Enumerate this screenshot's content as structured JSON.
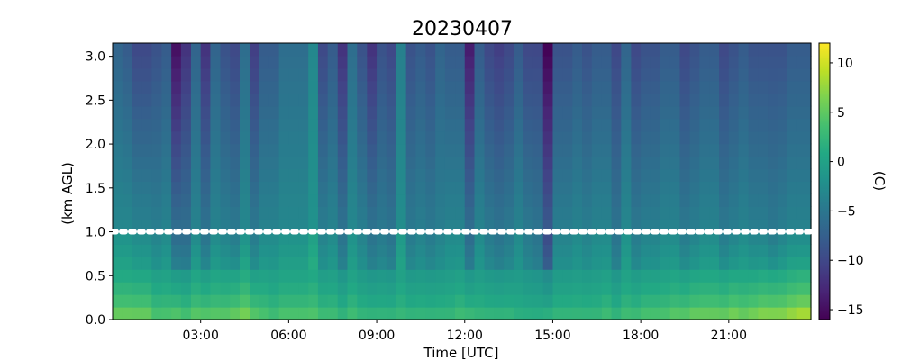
{
  "chart_data": {
    "type": "heatmap",
    "title": "20230407",
    "xlabel": "Time [UTC]",
    "ylabel": "(km AGL)",
    "colorbar_label": "(C)",
    "colormap": "viridis",
    "xlim_hours": [
      0,
      23.8
    ],
    "ylim_km": [
      0.0,
      3.15
    ],
    "clim_c": [
      -16.0,
      12.0
    ],
    "x_ticks": [
      {
        "hour": 3,
        "label": "03:00"
      },
      {
        "hour": 6,
        "label": "06:00"
      },
      {
        "hour": 9,
        "label": "09:00"
      },
      {
        "hour": 12,
        "label": "12:00"
      },
      {
        "hour": 15,
        "label": "15:00"
      },
      {
        "hour": 18,
        "label": "18:00"
      },
      {
        "hour": 21,
        "label": "21:00"
      }
    ],
    "y_ticks": [
      {
        "value": 0.0,
        "label": "0.0"
      },
      {
        "value": 0.5,
        "label": "0.5"
      },
      {
        "value": 1.0,
        "label": "1.0"
      },
      {
        "value": 1.5,
        "label": "1.5"
      },
      {
        "value": 2.0,
        "label": "2.0"
      },
      {
        "value": 2.5,
        "label": "2.5"
      },
      {
        "value": 3.0,
        "label": "3.0"
      }
    ],
    "colorbar_ticks": [
      {
        "value": 10,
        "label": "10"
      },
      {
        "value": 5,
        "label": "5"
      },
      {
        "value": 0,
        "label": "0"
      },
      {
        "value": -5,
        "label": "−5"
      },
      {
        "value": -10,
        "label": "−10"
      },
      {
        "value": -15,
        "label": "−15"
      }
    ],
    "time_columns_hours": [
      0.0,
      0.33,
      0.67,
      1.0,
      1.33,
      1.67,
      2.0,
      2.33,
      2.67,
      3.0,
      3.33,
      3.67,
      4.0,
      4.33,
      4.67,
      5.0,
      5.33,
      5.67,
      6.0,
      6.33,
      6.67,
      7.0,
      7.33,
      7.67,
      8.0,
      8.33,
      8.67,
      9.0,
      9.33,
      9.67,
      10.0,
      10.33,
      10.67,
      11.0,
      11.33,
      11.67,
      12.0,
      12.33,
      12.67,
      13.0,
      13.33,
      13.67,
      14.0,
      14.33,
      14.67,
      15.0,
      15.33,
      15.67,
      16.0,
      16.33,
      16.67,
      17.0,
      17.33,
      17.67,
      18.0,
      18.33,
      18.67,
      19.0,
      19.33,
      19.67,
      20.0,
      20.33,
      20.67,
      21.0,
      21.33,
      21.67,
      22.0,
      22.33,
      22.67,
      23.0,
      23.33
    ],
    "surface_temperature_c": [
      8,
      8,
      8,
      8,
      6,
      6,
      7,
      6,
      7,
      7,
      7,
      7,
      8,
      9,
      7,
      6,
      5,
      6,
      6,
      6,
      6,
      5,
      5,
      4,
      5,
      4,
      4,
      4,
      4,
      4,
      4,
      4,
      4,
      4,
      4,
      5,
      5,
      4,
      4,
      4,
      4,
      3,
      3,
      3,
      4,
      4,
      4,
      4,
      4,
      4,
      5,
      4,
      5,
      5,
      6,
      6,
      6,
      7,
      7,
      8,
      8,
      8,
      8,
      9,
      8,
      9,
      10,
      10,
      10,
      11,
      12
    ],
    "column_anomaly_c": [
      0,
      0,
      -1,
      -1,
      -2,
      -1,
      -5,
      -5,
      -1,
      -4,
      -1,
      -2,
      -3,
      0,
      -3,
      -1,
      -1,
      0,
      0,
      0,
      2,
      -2,
      -1,
      -4,
      0,
      -2,
      -4,
      -3,
      -4,
      1,
      -3,
      -2,
      -3,
      -2,
      -1,
      -1,
      -5,
      -1,
      -3,
      -4,
      -3,
      -1,
      -3,
      -4,
      -9,
      -2,
      -2,
      -1,
      -2,
      -1,
      -1,
      -4,
      0,
      -3,
      -2,
      -2,
      -1,
      -1,
      -3,
      -2,
      -1,
      -1,
      -3,
      -2,
      -1,
      -2,
      -2,
      -3,
      -2,
      -1,
      -1
    ],
    "upper_temperature_c": [
      -7,
      -8,
      -10,
      -10,
      -9,
      -8,
      -15,
      -12,
      -7,
      -12,
      -7,
      -9,
      -10,
      -6,
      -11,
      -8,
      -8,
      -6,
      -6,
      -6,
      -3,
      -10,
      -8,
      -12,
      -6,
      -9,
      -12,
      -9,
      -10,
      -4,
      -9,
      -8,
      -9,
      -7,
      -8,
      -8,
      -14,
      -8,
      -10,
      -11,
      -10,
      -8,
      -10,
      -10,
      -16,
      -9,
      -9,
      -8,
      -9,
      -8,
      -8,
      -10,
      -7,
      -10,
      -9,
      -9,
      -8,
      -8,
      -10,
      -9,
      -8,
      -8,
      -10,
      -9,
      -8,
      -9,
      -9,
      -9,
      -9,
      -8,
      -8
    ],
    "overlay": {
      "type": "dotted-line",
      "height_km": 1.0,
      "color": "#ffffff"
    }
  }
}
